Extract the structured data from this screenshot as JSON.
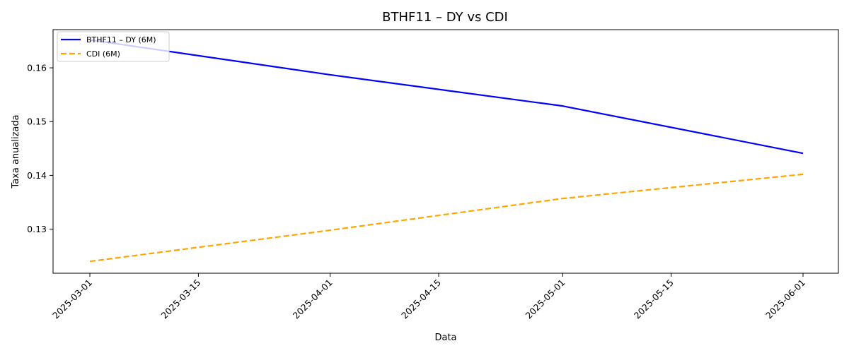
{
  "chart_data": {
    "type": "line",
    "title": "BTHF11 – DY vs CDI",
    "xlabel": "Data",
    "ylabel": "Taxa anualizada",
    "x": [
      "2025-03-01",
      "2025-04-01",
      "2025-05-01",
      "2025-06-01"
    ],
    "x_ticks": [
      "2025-03-01",
      "2025-03-15",
      "2025-04-01",
      "2025-04-15",
      "2025-05-01",
      "2025-05-15",
      "2025-06-01"
    ],
    "y_ticks": [
      "0.13",
      "0.14",
      "0.15",
      "0.16"
    ],
    "ylim": [
      0.1218,
      0.1671
    ],
    "grid": false,
    "legend_position": "top-left",
    "series": [
      {
        "name": "BTHF11 – DY (6M)",
        "values": [
          0.1652,
          0.1587,
          0.1529,
          0.1441
        ],
        "color": "#0000ff",
        "style": "solid"
      },
      {
        "name": "CDI (6M)",
        "values": [
          0.124,
          0.1298,
          0.1357,
          0.1402
        ],
        "color": "#ffa500",
        "style": "dashed"
      }
    ]
  }
}
